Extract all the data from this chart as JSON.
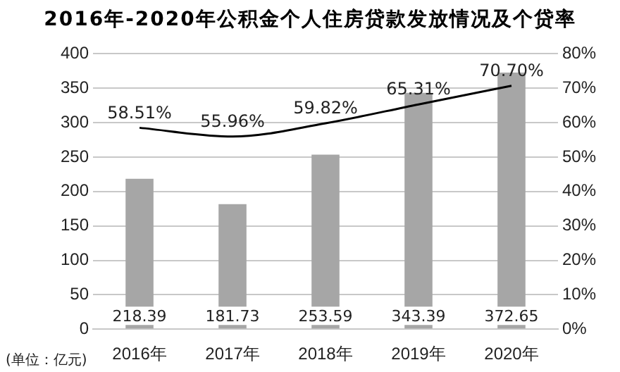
{
  "chart_data": {
    "type": "bar",
    "title": "2016年-2020年公积金个人住房贷款发放情况及个贷率",
    "categories": [
      "2016年",
      "2017年",
      "2018年",
      "2019年",
      "2020年"
    ],
    "series": [
      {
        "color": "#a6a6a6",
        "values": [
          218.39,
          181.73,
          253.59,
          343.39,
          372.65
        ],
        "value_labels": [
          "218.39",
          "181.73",
          "253.59",
          "343.39",
          "372.65"
        ]
      },
      {
        "type": "line",
        "axis": "y2",
        "color": "#000000",
        "values": [
          58.51,
          55.96,
          59.82,
          65.31,
          70.7
        ],
        "value_labels": [
          "58.51%",
          "55.96%",
          "59.82%",
          "65.31%",
          "70.70%"
        ]
      }
    ],
    "ylim": [
      0,
      400
    ],
    "yticks": [
      0,
      50,
      100,
      150,
      200,
      250,
      300,
      350,
      400
    ],
    "y2lim": [
      0,
      80
    ],
    "y2ticks": [
      {
        "value": 0,
        "label": "0%"
      },
      {
        "value": 10,
        "label": "10%"
      },
      {
        "value": 20,
        "label": "20%"
      },
      {
        "value": 30,
        "label": "30%"
      },
      {
        "value": 40,
        "label": "40%"
      },
      {
        "value": 50,
        "label": "50%"
      },
      {
        "value": 60,
        "label": "60%"
      },
      {
        "value": 70,
        "label": "70%"
      },
      {
        "value": 80,
        "label": "80%"
      }
    ],
    "grid": "y",
    "legend": false,
    "marker": "none",
    "line_style": "solid",
    "annotations": [
      "(单位：亿元)"
    ]
  }
}
